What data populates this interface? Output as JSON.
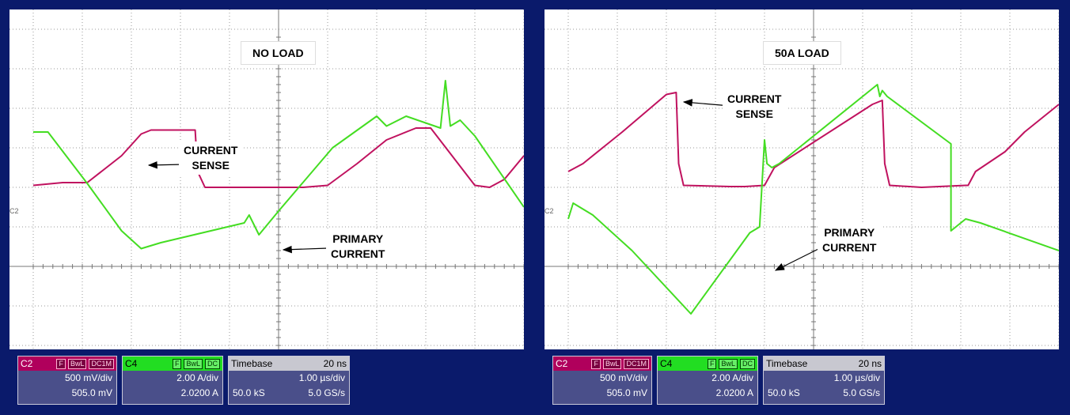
{
  "chart_data": [
    {
      "type": "line",
      "title": "NO LOAD",
      "x_unit": "µs",
      "y_unit": "div",
      "xlim": [
        0,
        10
      ],
      "ylim": [
        -4,
        4
      ],
      "series": [
        {
          "name": "C2",
          "color": "#c0125f",
          "x": [
            0,
            0.6,
            1.1,
            1.8,
            2.2,
            2.4,
            3.3,
            3.35,
            3.5,
            4.5,
            5.5,
            6.0,
            6.6,
            7.2,
            7.8,
            8.1,
            9.0,
            9.3,
            9.6,
            10
          ],
          "y": [
            0.05,
            0.12,
            0.12,
            0.8,
            1.35,
            1.45,
            1.45,
            0.4,
            0,
            0,
            0,
            0.05,
            0.6,
            1.2,
            1.5,
            1.5,
            0.05,
            0,
            0.2,
            0.8
          ]
        },
        {
          "name": "C4",
          "color": "#44dd22",
          "x": [
            0,
            0.3,
            1.1,
            1.8,
            2.2,
            2.6,
            4.3,
            4.4,
            4.6,
            5.0,
            6.1,
            7.0,
            7.2,
            7.6,
            8.3,
            8.4,
            8.5,
            8.7,
            9.0,
            10
          ],
          "y": [
            1.4,
            1.4,
            0.1,
            -1.1,
            -1.55,
            -1.4,
            -0.9,
            -0.7,
            -1.2,
            -0.6,
            1.0,
            1.8,
            1.55,
            1.8,
            1.5,
            2.7,
            1.55,
            1.7,
            1.3,
            -0.5
          ]
        }
      ],
      "annotations": [
        {
          "text": [
            "CURRENT",
            "SENSE"
          ]
        },
        {
          "text": [
            "PRIMARY",
            "CURRENT"
          ]
        }
      ]
    },
    {
      "type": "line",
      "title": "50A LOAD",
      "x_unit": "µs",
      "y_unit": "div",
      "xlim": [
        0,
        10
      ],
      "ylim": [
        -4,
        4
      ],
      "series": [
        {
          "name": "C2",
          "color": "#c0125f",
          "x": [
            0,
            0.3,
            1.1,
            2.0,
            2.2,
            2.25,
            2.35,
            3.3,
            3.6,
            4.0,
            4.2,
            6.2,
            6.4,
            6.45,
            6.55,
            7.2,
            8.1,
            8.15,
            8.3,
            8.9,
            9.3,
            10
          ],
          "y": [
            0.4,
            0.6,
            1.4,
            2.35,
            2.4,
            0.6,
            0.05,
            0.02,
            0.02,
            0.05,
            0.5,
            2.1,
            2.2,
            0.6,
            0.05,
            0.0,
            0.05,
            0.05,
            0.4,
            0.9,
            1.4,
            2.1
          ]
        },
        {
          "name": "C4",
          "color": "#44dd22",
          "x": [
            0,
            0.1,
            0.5,
            1.3,
            2.5,
            3.7,
            3.9,
            4.0,
            4.05,
            4.15,
            4.3,
            6.3,
            6.35,
            6.4,
            6.5,
            7.8,
            7.8,
            7.9,
            8.1,
            8.4,
            10
          ],
          "y": [
            -0.8,
            -0.4,
            -0.7,
            -1.6,
            -3.2,
            -1.15,
            -1.0,
            1.2,
            0.6,
            0.5,
            0.6,
            2.6,
            2.3,
            2.45,
            2.3,
            1.1,
            -1.1,
            -1.0,
            -0.8,
            -0.9,
            -1.6
          ]
        }
      ],
      "annotations": [
        {
          "text": [
            "CURRENT",
            "SENSE"
          ]
        },
        {
          "text": [
            "PRIMARY",
            "CURRENT"
          ]
        }
      ]
    }
  ],
  "scope": {
    "marker": "C2",
    "ch2": {
      "label": "C2",
      "tags": [
        "F",
        "BwL",
        "DC1M"
      ],
      "scale": "500 mV/div",
      "offset": "505.0 mV"
    },
    "ch4": {
      "label": "C4",
      "tags": [
        "F",
        "BwL",
        "DC"
      ],
      "scale": "2.00 A/div",
      "offset": "2.0200 A"
    },
    "timebase": {
      "label": "Timebase",
      "delay": "20 ns",
      "scale": "1.00 µs/div",
      "samples": "50.0 kS",
      "rate": "5.0 GS/s"
    }
  }
}
